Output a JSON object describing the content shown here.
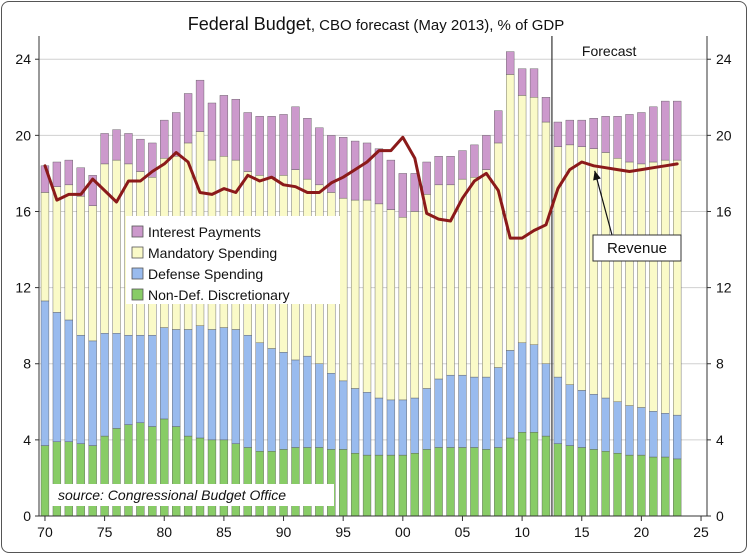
{
  "chart_data": {
    "type": "bar",
    "subtype": "stacked-bar-with-line",
    "title": "Federal Budget",
    "subtitle": ", CBO forecast (May 2013), % of GDP",
    "source": "source: Congressional Budget Office",
    "forecast_label": "Forecast",
    "forecast_start_year": 2012.5,
    "revenue_label": "Revenue",
    "x_ticks": [
      "70",
      "75",
      "80",
      "85",
      "90",
      "95",
      "00",
      "05",
      "10",
      "15",
      "20",
      "25"
    ],
    "x_tick_years": [
      1970,
      1975,
      1980,
      1985,
      1990,
      1995,
      2000,
      2005,
      2010,
      2015,
      2020,
      2025
    ],
    "y_ticks": [
      "0",
      "4",
      "8",
      "12",
      "16",
      "20",
      "24"
    ],
    "y_tick_values": [
      0,
      4,
      8,
      12,
      16,
      20,
      24
    ],
    "xlim": [
      1969.5,
      2025.5
    ],
    "ylim": [
      0,
      24.8
    ],
    "grid": true,
    "legend_position": "center-left",
    "colors": {
      "interest": "#cc99cc",
      "mandatory": "#fafac8",
      "defense": "#99bbee",
      "nondef": "#88cc66",
      "revenue": "#8b1a1a",
      "bar_edge": "#555555",
      "grid": "#d0d0d0"
    },
    "years": [
      1970,
      1971,
      1972,
      1973,
      1974,
      1975,
      1976,
      1977,
      1978,
      1979,
      1980,
      1981,
      1982,
      1983,
      1984,
      1985,
      1986,
      1987,
      1988,
      1989,
      1990,
      1991,
      1992,
      1993,
      1994,
      1995,
      1996,
      1997,
      1998,
      1999,
      2000,
      2001,
      2002,
      2003,
      2004,
      2005,
      2006,
      2007,
      2008,
      2009,
      2010,
      2011,
      2012,
      2013,
      2014,
      2015,
      2016,
      2017,
      2018,
      2019,
      2020,
      2021,
      2022,
      2023
    ],
    "series": [
      {
        "name": "Non-Def. Discretionary",
        "key": "nondef",
        "values": [
          3.7,
          3.9,
          3.9,
          3.8,
          3.7,
          4.2,
          4.6,
          4.8,
          4.9,
          4.7,
          5.1,
          4.7,
          4.2,
          4.1,
          4.0,
          4.0,
          3.8,
          3.6,
          3.4,
          3.4,
          3.5,
          3.6,
          3.6,
          3.6,
          3.5,
          3.5,
          3.3,
          3.2,
          3.2,
          3.2,
          3.2,
          3.3,
          3.5,
          3.6,
          3.6,
          3.6,
          3.6,
          3.5,
          3.6,
          4.1,
          4.4,
          4.4,
          4.2,
          3.8,
          3.7,
          3.6,
          3.5,
          3.4,
          3.3,
          3.2,
          3.2,
          3.1,
          3.1,
          3.0
        ]
      },
      {
        "name": "Defense Spending",
        "key": "defense",
        "values": [
          7.6,
          6.8,
          6.4,
          5.7,
          5.5,
          5.4,
          5.0,
          4.7,
          4.6,
          4.8,
          4.8,
          5.1,
          5.6,
          5.9,
          5.8,
          5.9,
          6.0,
          5.9,
          5.7,
          5.4,
          5.1,
          4.6,
          4.8,
          4.4,
          4.0,
          3.6,
          3.4,
          3.3,
          3.0,
          2.9,
          2.9,
          2.9,
          3.2,
          3.6,
          3.8,
          3.8,
          3.7,
          3.8,
          4.2,
          4.6,
          4.7,
          4.6,
          3.8,
          3.5,
          3.2,
          3.0,
          2.9,
          2.8,
          2.7,
          2.6,
          2.5,
          2.4,
          2.3,
          2.3
        ]
      },
      {
        "name": "Mandatory Spending",
        "key": "mandatory",
        "values": [
          5.7,
          6.6,
          7.1,
          7.3,
          7.1,
          8.9,
          9.1,
          9.0,
          8.6,
          8.3,
          8.9,
          9.1,
          9.8,
          10.2,
          8.9,
          9.0,
          8.9,
          8.6,
          8.8,
          9.0,
          9.3,
          10.0,
          9.3,
          9.4,
          9.5,
          9.6,
          9.9,
          10.1,
          10.2,
          10.0,
          9.6,
          9.8,
          10.2,
          10.2,
          10.0,
          10.3,
          10.5,
          10.9,
          11.8,
          14.5,
          13.0,
          13.0,
          12.7,
          12.1,
          12.6,
          12.8,
          12.9,
          12.9,
          12.8,
          12.8,
          12.8,
          13.1,
          13.3,
          13.4
        ]
      },
      {
        "name": "Interest Payments",
        "key": "interest",
        "values": [
          1.4,
          1.3,
          1.3,
          1.5,
          1.6,
          1.6,
          1.6,
          1.6,
          1.7,
          1.8,
          2.0,
          2.3,
          2.6,
          2.7,
          3.0,
          3.2,
          3.2,
          3.1,
          3.1,
          3.2,
          3.2,
          3.3,
          3.2,
          3.0,
          3.0,
          3.2,
          3.1,
          3.0,
          2.9,
          2.6,
          2.3,
          2.0,
          1.7,
          1.5,
          1.5,
          1.5,
          1.7,
          1.8,
          1.7,
          1.2,
          1.4,
          1.5,
          1.3,
          1.3,
          1.3,
          1.4,
          1.6,
          1.9,
          2.2,
          2.5,
          2.7,
          2.9,
          3.1,
          3.1
        ]
      }
    ],
    "revenue": {
      "name": "Revenue",
      "values": [
        18.4,
        16.6,
        16.9,
        16.9,
        17.7,
        17.1,
        16.5,
        17.6,
        17.6,
        18.1,
        18.5,
        19.1,
        18.6,
        17.0,
        16.9,
        17.2,
        17.0,
        17.9,
        17.6,
        17.8,
        17.4,
        17.3,
        17.0,
        17.0,
        17.5,
        17.8,
        18.2,
        18.6,
        19.2,
        19.2,
        19.9,
        18.8,
        15.9,
        15.6,
        15.5,
        16.7,
        17.6,
        18.0,
        17.1,
        14.6,
        14.6,
        15.0,
        15.3,
        17.2,
        18.2,
        18.6,
        18.4,
        18.3,
        18.2,
        18.1,
        18.2,
        18.3,
        18.4,
        18.5
      ]
    }
  }
}
